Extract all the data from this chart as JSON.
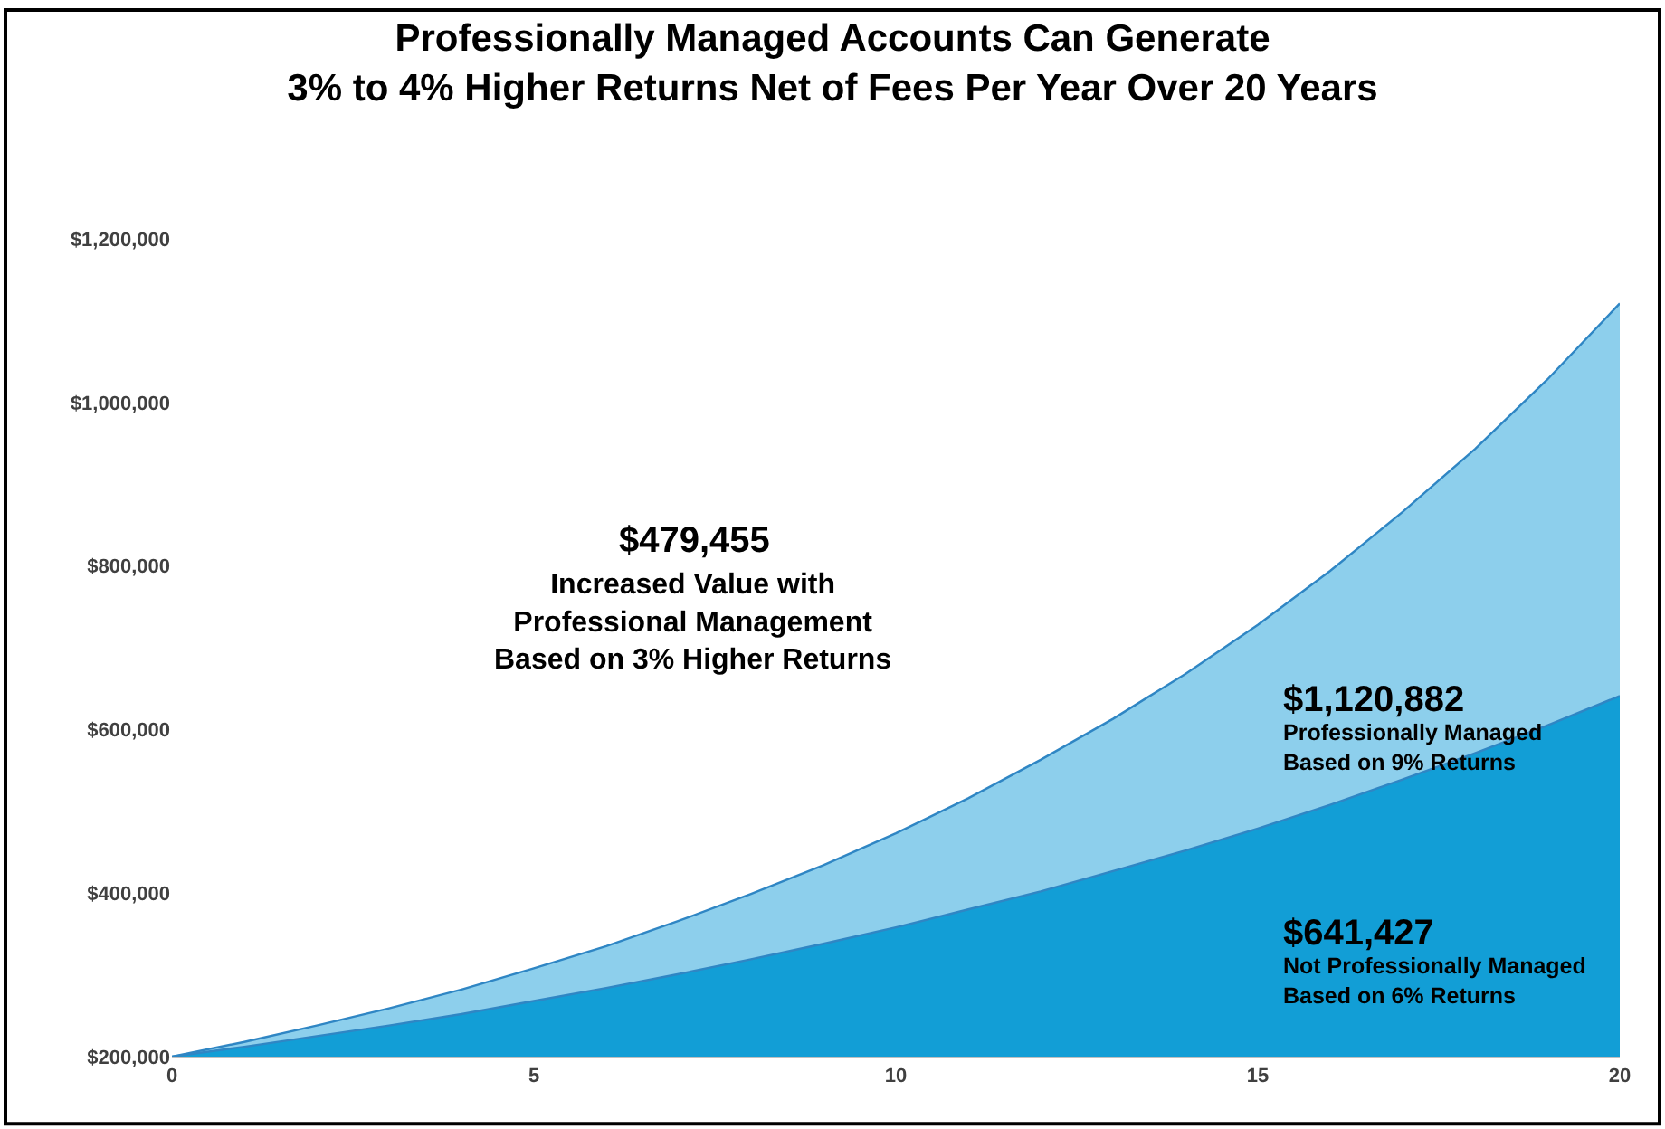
{
  "chart_data": {
    "type": "area",
    "title": "Professionally Managed Accounts Can Generate\n3% to 4% Higher Returns Net of Fees Per Year Over 20 Years",
    "x": [
      0,
      1,
      2,
      3,
      4,
      5,
      6,
      7,
      8,
      9,
      10,
      11,
      12,
      13,
      14,
      15,
      16,
      17,
      18,
      19,
      20
    ],
    "series": [
      {
        "color": "#8dcfec",
        "values": [
          200000,
          218000,
          238000,
          259000,
          282000,
          308000,
          335000,
          366000,
          399000,
          434000,
          473000,
          516000,
          563000,
          613000,
          668000,
          728000,
          794000,
          866000,
          943000,
          1028000,
          1121000
        ]
      },
      {
        "color": "#129ed6",
        "values": [
          200000,
          212000,
          225000,
          238000,
          252000,
          268000,
          284000,
          301000,
          319000,
          338000,
          358000,
          380000,
          402000,
          427000,
          452000,
          479000,
          508000,
          539000,
          571000,
          605000,
          641000
        ]
      }
    ],
    "xlim": [
      0,
      20
    ],
    "xticks": [
      0,
      5,
      10,
      15,
      20
    ],
    "ylim": [
      200000,
      1200000
    ],
    "yticks": [
      {
        "value": 200000,
        "label": "$200,000"
      },
      {
        "value": 400000,
        "label": "$400,000"
      },
      {
        "value": 600000,
        "label": "$600,000"
      },
      {
        "value": 800000,
        "label": "$800,000"
      },
      {
        "value": 1000000,
        "label": "$1,000,000"
      },
      {
        "value": 1200000,
        "label": "$1,200,000"
      }
    ],
    "annotations": [
      "$479,455",
      "Increased Value with\nProfessional Management\nBased on 3% Higher Returns",
      "$1,120,882",
      "Professionally Managed\nBased on 9% Returns",
      "$641,427",
      "Not Professionally Managed\nBased on 6% Returns"
    ]
  }
}
